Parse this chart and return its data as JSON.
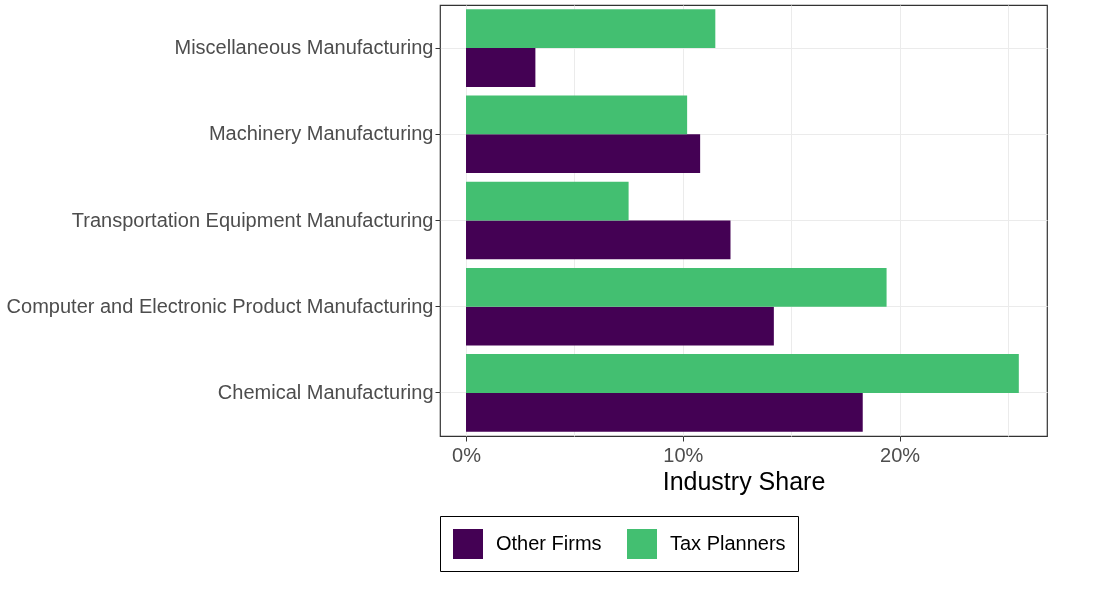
{
  "chart_data": {
    "type": "bar",
    "orientation": "horizontal",
    "xlabel": "Industry Share",
    "categories": [
      "Miscellaneous Manufacturing",
      "Machinery Manufacturing",
      "Transportation Equipment Manufacturing",
      "Computer and Electronic Product Manufacturing",
      "Chemical Manufacturing"
    ],
    "series": [
      {
        "name": "Other Firms",
        "color": "#440154",
        "values": [
          3.2,
          10.8,
          12.2,
          14.2,
          18.3
        ]
      },
      {
        "name": "Tax Planners",
        "color": "#43bf71",
        "values": [
          11.5,
          10.2,
          7.5,
          19.4,
          25.5
        ]
      }
    ],
    "xlim": [
      -1.2,
      26.8
    ],
    "xticks": [
      {
        "value": 0,
        "label": "0%"
      },
      {
        "value": 5,
        "label": null
      },
      {
        "value": 10,
        "label": "10%"
      },
      {
        "value": 15,
        "label": null
      },
      {
        "value": 20,
        "label": "20%"
      },
      {
        "value": 25,
        "label": null
      }
    ],
    "grid": true,
    "legend": "bottom"
  }
}
